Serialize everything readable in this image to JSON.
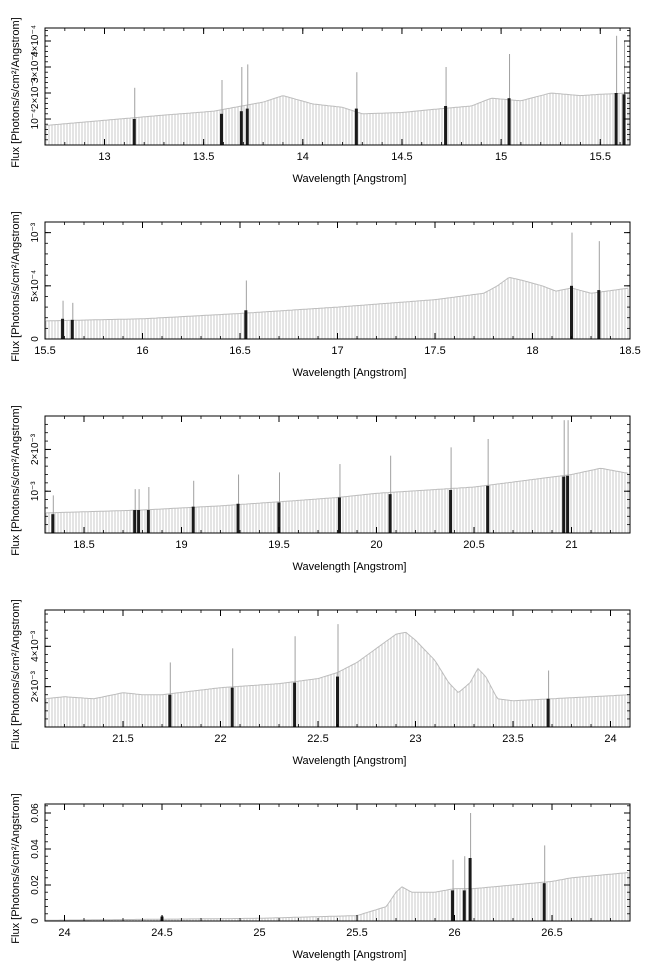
{
  "chart_data": [
    {
      "type": "bar",
      "panel": 1,
      "xlabel": "Wavelength [Angstrom]",
      "ylabel": "Flux [Photons/s/cm²/Angstrom]",
      "xlim": [
        12.7,
        15.65
      ],
      "ylim": [
        0,
        0.00045
      ],
      "xticks": [
        13,
        13.5,
        14,
        14.5,
        15,
        15.5
      ],
      "xtick_labels": [
        "13",
        "13.5",
        "14",
        "14.5",
        "15",
        "15.5"
      ],
      "yticks": [
        0.0001,
        0.0002,
        0.0003,
        0.0004
      ],
      "ytick_labels": [
        "10⁻⁴",
        "2×10⁻⁴",
        "3×10⁻⁴",
        "4×10⁻⁴"
      ],
      "continuum": [
        [
          12.7,
          7.5e-05
        ],
        [
          13.0,
          9.5e-05
        ],
        [
          13.3,
          0.000115
        ],
        [
          13.55,
          0.00013
        ],
        [
          13.8,
          0.000165
        ],
        [
          13.9,
          0.00019
        ],
        [
          13.97,
          0.000175
        ],
        [
          14.05,
          0.000158
        ],
        [
          14.2,
          0.000145
        ],
        [
          14.3,
          0.00012
        ],
        [
          14.5,
          0.000125
        ],
        [
          14.7,
          0.00014
        ],
        [
          14.85,
          0.00015
        ],
        [
          14.95,
          0.00018
        ],
        [
          15.1,
          0.00017
        ],
        [
          15.25,
          0.0002
        ],
        [
          15.4,
          0.00019
        ],
        [
          15.5,
          0.000195
        ],
        [
          15.65,
          0.0002
        ]
      ],
      "lines": [
        {
          "x": 13.15,
          "value": 0.0001,
          "err": 0.00022
        },
        {
          "x": 13.59,
          "value": 0.00012,
          "err": 0.00025
        },
        {
          "x": 13.69,
          "value": 0.00013,
          "err": 0.0003
        },
        {
          "x": 13.72,
          "value": 0.00014,
          "err": 0.00031
        },
        {
          "x": 14.27,
          "value": 0.00014,
          "err": 0.00028
        },
        {
          "x": 14.72,
          "value": 0.00015,
          "err": 0.0003
        },
        {
          "x": 15.04,
          "value": 0.00018,
          "err": 0.00035
        },
        {
          "x": 15.58,
          "value": 0.0002,
          "err": 0.00042
        },
        {
          "x": 15.62,
          "value": 0.000195,
          "err": 0.0004
        }
      ]
    },
    {
      "type": "bar",
      "panel": 2,
      "xlabel": "Wavelength [Angstrom]",
      "ylabel": "Flux [Photons/s/cm²/Angstrom]",
      "xlim": [
        15.5,
        18.5
      ],
      "ylim": [
        0,
        0.0011
      ],
      "xticks": [
        15.5,
        16,
        16.5,
        17,
        17.5,
        18,
        18.5
      ],
      "xtick_labels": [
        "15.5",
        "16",
        "16.5",
        "17",
        "17.5",
        "18",
        "18.5"
      ],
      "yticks": [
        0,
        0.0005,
        0.001
      ],
      "ytick_labels": [
        "0",
        "5×10⁻⁴",
        "10⁻³"
      ],
      "continuum": [
        [
          15.5,
          0.00017
        ],
        [
          16.0,
          0.00019
        ],
        [
          16.5,
          0.00024
        ],
        [
          17.0,
          0.0003
        ],
        [
          17.5,
          0.00037
        ],
        [
          17.75,
          0.00043
        ],
        [
          17.82,
          0.0005
        ],
        [
          17.88,
          0.00058
        ],
        [
          17.95,
          0.00055
        ],
        [
          18.05,
          0.0005
        ],
        [
          18.12,
          0.00045
        ],
        [
          18.2,
          0.00048
        ],
        [
          18.3,
          0.00043
        ],
        [
          18.5,
          0.00048
        ]
      ],
      "lines": [
        {
          "x": 15.59,
          "value": 0.00019,
          "err": 0.00036
        },
        {
          "x": 15.64,
          "value": 0.00018,
          "err": 0.00034
        },
        {
          "x": 16.53,
          "value": 0.00027,
          "err": 0.00055
        },
        {
          "x": 18.2,
          "value": 0.0005,
          "err": 0.001
        },
        {
          "x": 18.34,
          "value": 0.00046,
          "err": 0.00092
        }
      ]
    },
    {
      "type": "bar",
      "panel": 3,
      "xlabel": "Wavelength [Angstrom]",
      "ylabel": "Flux [Photons/s/cm²/Angstrom]",
      "xlim": [
        18.3,
        21.3
      ],
      "ylim": [
        0,
        0.0028
      ],
      "xticks": [
        18.5,
        19,
        19.5,
        20,
        20.5,
        21
      ],
      "xtick_labels": [
        "18.5",
        "19",
        "19.5",
        "20",
        "20.5",
        "21"
      ],
      "yticks": [
        0.001,
        0.002
      ],
      "ytick_labels": [
        "10⁻³",
        "2×10⁻³"
      ],
      "continuum": [
        [
          18.3,
          0.00048
        ],
        [
          18.8,
          0.00055
        ],
        [
          19.2,
          0.00065
        ],
        [
          19.6,
          0.00078
        ],
        [
          19.8,
          0.00085
        ],
        [
          20.0,
          0.00095
        ],
        [
          20.5,
          0.0011
        ],
        [
          21.0,
          0.0014
        ],
        [
          21.15,
          0.00155
        ],
        [
          21.3,
          0.00142
        ]
      ],
      "lines": [
        {
          "x": 18.34,
          "value": 0.00045,
          "err": 0.0009
        },
        {
          "x": 18.76,
          "value": 0.00055,
          "err": 0.00105
        },
        {
          "x": 18.78,
          "value": 0.00055,
          "err": 0.00105
        },
        {
          "x": 18.83,
          "value": 0.00055,
          "err": 0.0011
        },
        {
          "x": 19.06,
          "value": 0.00063,
          "err": 0.00125
        },
        {
          "x": 19.29,
          "value": 0.0007,
          "err": 0.0014
        },
        {
          "x": 19.5,
          "value": 0.00073,
          "err": 0.00145
        },
        {
          "x": 19.81,
          "value": 0.00085,
          "err": 0.00165
        },
        {
          "x": 20.07,
          "value": 0.00093,
          "err": 0.00185
        },
        {
          "x": 20.38,
          "value": 0.00103,
          "err": 0.00205
        },
        {
          "x": 20.57,
          "value": 0.00113,
          "err": 0.00225
        },
        {
          "x": 20.96,
          "value": 0.00135,
          "err": 0.0027
        },
        {
          "x": 20.98,
          "value": 0.00137,
          "err": 0.0027
        }
      ]
    },
    {
      "type": "bar",
      "panel": 4,
      "xlabel": "Wavelength [Angstrom]",
      "ylabel": "Flux [Photons/s/cm²/Angstrom]",
      "xlim": [
        21.1,
        24.1
      ],
      "ylim": [
        0,
        0.0058
      ],
      "xticks": [
        21.5,
        22,
        22.5,
        23,
        23.5,
        24
      ],
      "xtick_labels": [
        "21.5",
        "22",
        "22.5",
        "23",
        "23.5",
        "24"
      ],
      "yticks": [
        0.002,
        0.004
      ],
      "ytick_labels": [
        "2×10⁻³",
        "4×10⁻³"
      ],
      "continuum": [
        [
          21.1,
          0.0014
        ],
        [
          21.2,
          0.0015
        ],
        [
          21.35,
          0.0014
        ],
        [
          21.5,
          0.0017
        ],
        [
          21.6,
          0.0016
        ],
        [
          21.7,
          0.0016
        ],
        [
          22.0,
          0.00195
        ],
        [
          22.3,
          0.00215
        ],
        [
          22.5,
          0.0024
        ],
        [
          22.6,
          0.0027
        ],
        [
          22.7,
          0.0032
        ],
        [
          22.8,
          0.0039
        ],
        [
          22.9,
          0.0046
        ],
        [
          22.95,
          0.0047
        ],
        [
          23.0,
          0.0043
        ],
        [
          23.1,
          0.0033
        ],
        [
          23.17,
          0.0022
        ],
        [
          23.22,
          0.0017
        ],
        [
          23.28,
          0.0022
        ],
        [
          23.32,
          0.0029
        ],
        [
          23.36,
          0.0025
        ],
        [
          23.42,
          0.0014
        ],
        [
          23.5,
          0.0013
        ],
        [
          23.7,
          0.0014
        ],
        [
          24.1,
          0.0016
        ]
      ],
      "lines": [
        {
          "x": 21.74,
          "value": 0.0016,
          "err": 0.0032
        },
        {
          "x": 22.06,
          "value": 0.00195,
          "err": 0.0039
        },
        {
          "x": 22.38,
          "value": 0.0022,
          "err": 0.0045
        },
        {
          "x": 22.6,
          "value": 0.0025,
          "err": 0.0051
        },
        {
          "x": 23.68,
          "value": 0.0014,
          "err": 0.0028
        }
      ]
    },
    {
      "type": "bar",
      "panel": 5,
      "xlabel": "Wavelength [Angstrom]",
      "ylabel": "Flux [Photons/s/cm²/Angstrom]",
      "xlim": [
        23.9,
        26.9
      ],
      "ylim": [
        0,
        0.065
      ],
      "xticks": [
        24,
        24.5,
        25,
        25.5,
        26,
        26.5
      ],
      "xtick_labels": [
        "24",
        "24.5",
        "25",
        "25.5",
        "26",
        "26.5"
      ],
      "yticks": [
        0,
        0.02,
        0.04,
        0.06
      ],
      "ytick_labels": [
        "0",
        "0.02",
        "0.04",
        "0.06"
      ],
      "continuum": [
        [
          23.9,
          0.0004
        ],
        [
          24.5,
          0.001
        ],
        [
          25.0,
          0.0015
        ],
        [
          25.5,
          0.003
        ],
        [
          25.65,
          0.008
        ],
        [
          25.7,
          0.016
        ],
        [
          25.73,
          0.019
        ],
        [
          25.78,
          0.016
        ],
        [
          25.9,
          0.016
        ],
        [
          26.0,
          0.018
        ],
        [
          26.1,
          0.018
        ],
        [
          26.3,
          0.02
        ],
        [
          26.5,
          0.022
        ],
        [
          26.6,
          0.024
        ],
        [
          26.9,
          0.027
        ]
      ],
      "lines": [
        {
          "x": 24.5,
          "value": 0.0025,
          "err": 0.003
        },
        {
          "x": 25.99,
          "value": 0.017,
          "err": 0.034
        },
        {
          "x": 26.05,
          "value": 0.017,
          "err": 0.036
        },
        {
          "x": 26.08,
          "value": 0.035,
          "err": 0.06
        },
        {
          "x": 26.46,
          "value": 0.021,
          "err": 0.042
        }
      ]
    }
  ]
}
